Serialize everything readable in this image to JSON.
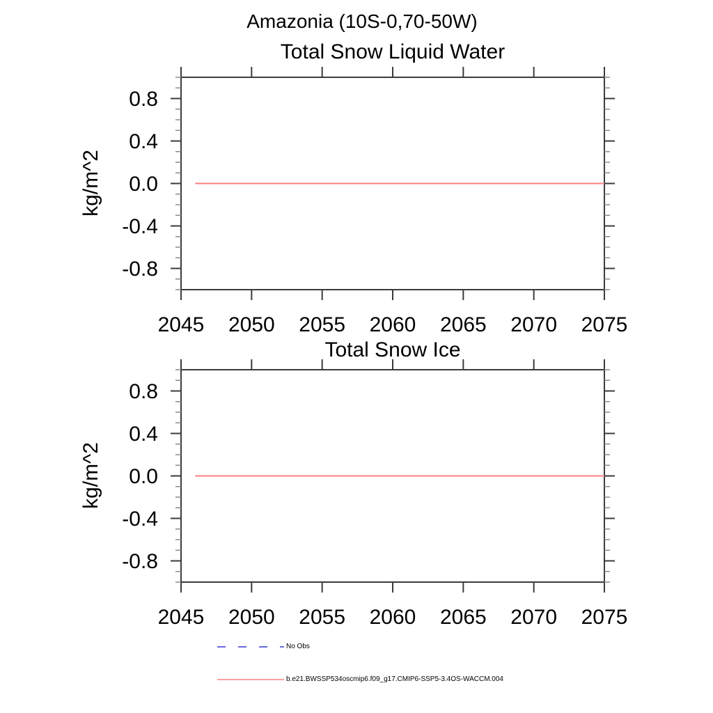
{
  "figure": {
    "title": "Amazonia (10S-0,70-50W)"
  },
  "colors": {
    "background": "#ffffff",
    "axis": "#3b3b3b",
    "minor_tick": "#8a8a8a",
    "text": "#000000",
    "model_line": "#fa8080",
    "no_obs_line": "#6868e0"
  },
  "chart_data": [
    {
      "type": "line",
      "title": "Total Snow Liquid Water",
      "ylabel": "kg/m^2",
      "xlim": [
        2045,
        2075
      ],
      "ylim": [
        -1.0,
        1.0
      ],
      "grid": false,
      "x_ticks": [
        {
          "v": 2045,
          "label": "2045"
        },
        {
          "v": 2050,
          "label": "2050"
        },
        {
          "v": 2055,
          "label": "2055"
        },
        {
          "v": 2060,
          "label": "2060"
        },
        {
          "v": 2065,
          "label": "2065"
        },
        {
          "v": 2070,
          "label": "2070"
        },
        {
          "v": 2075,
          "label": "2075"
        }
      ],
      "y_ticks": [
        {
          "v": 0.8,
          "label": "0.8"
        },
        {
          "v": 0.4,
          "label": "0.4"
        },
        {
          "v": 0.0,
          "label": "0.0"
        },
        {
          "v": -0.4,
          "label": "-0.4"
        },
        {
          "v": -0.8,
          "label": "-0.8"
        }
      ],
      "y_minor_step": 0.1,
      "series": [
        {
          "name": "b.e21.BWSSP534oscmip6.f09_g17.CMIP6-SSP5-3.4OS-WACCM.004",
          "color": "#fa8080",
          "points": [
            {
              "x": 2046,
              "y": 0.0
            },
            {
              "x": 2075,
              "y": 0.0
            }
          ]
        }
      ]
    },
    {
      "type": "line",
      "title": "Total Snow Ice",
      "ylabel": "kg/m^2",
      "xlim": [
        2045,
        2075
      ],
      "ylim": [
        -1.0,
        1.0
      ],
      "grid": false,
      "x_ticks": [
        {
          "v": 2045,
          "label": "2045"
        },
        {
          "v": 2050,
          "label": "2050"
        },
        {
          "v": 2055,
          "label": "2055"
        },
        {
          "v": 2060,
          "label": "2060"
        },
        {
          "v": 2065,
          "label": "2065"
        },
        {
          "v": 2070,
          "label": "2070"
        },
        {
          "v": 2075,
          "label": "2075"
        }
      ],
      "y_ticks": [
        {
          "v": 0.8,
          "label": "0.8"
        },
        {
          "v": 0.4,
          "label": "0.4"
        },
        {
          "v": 0.0,
          "label": "0.0"
        },
        {
          "v": -0.4,
          "label": "-0.4"
        },
        {
          "v": -0.8,
          "label": "-0.8"
        }
      ],
      "y_minor_step": 0.1,
      "series": [
        {
          "name": "b.e21.BWSSP534oscmip6.f09_g17.CMIP6-SSP5-3.4OS-WACCM.004",
          "color": "#fa8080",
          "points": [
            {
              "x": 2046,
              "y": 0.0
            },
            {
              "x": 2075,
              "y": 0.0
            }
          ]
        }
      ]
    }
  ],
  "legend": {
    "entries": [
      {
        "label": "No Obs",
        "style": "dashed",
        "color": "#6868e0"
      },
      {
        "label": "b.e21.BWSSP534oscmip6.f09_g17.CMIP6-SSP5-3.4OS-WACCM.004",
        "style": "solid",
        "color": "#fa8080"
      }
    ]
  }
}
